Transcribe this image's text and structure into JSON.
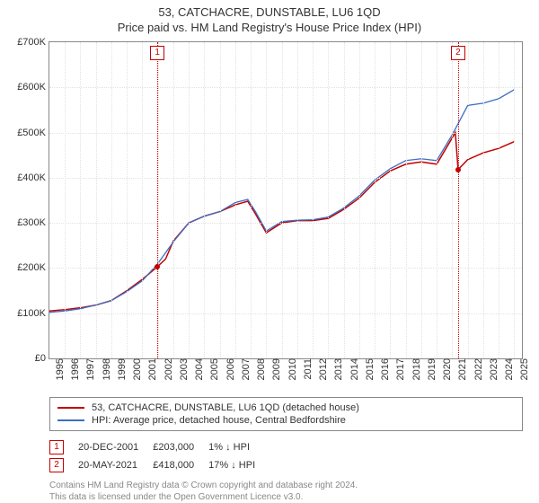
{
  "title_line1": "53, CATCHACRE, DUNSTABLE, LU6 1QD",
  "title_line2": "Price paid vs. HM Land Registry's House Price Index (HPI)",
  "chart": {
    "type": "line",
    "background_color": "#ffffff",
    "grid_color": "#e2e2e2",
    "axis_color": "#888888",
    "ylim": [
      0,
      700000
    ],
    "ytick_step": 100000,
    "ytick_prefix": "£",
    "ytick_suffix": "K",
    "xlim": [
      1995,
      2025.5
    ],
    "xticks": [
      1995,
      1996,
      1997,
      1998,
      1999,
      2000,
      2001,
      2002,
      2003,
      2004,
      2005,
      2006,
      2007,
      2008,
      2009,
      2010,
      2011,
      2012,
      2013,
      2014,
      2015,
      2016,
      2017,
      2018,
      2019,
      2020,
      2021,
      2022,
      2023,
      2024,
      2025
    ],
    "series": [
      {
        "name": "53, CATCHACRE, DUNSTABLE, LU6 1QD (detached house)",
        "color": "#c40000",
        "line_width": 1.5,
        "data": [
          [
            1995,
            105000
          ],
          [
            1996,
            108000
          ],
          [
            1997,
            112000
          ],
          [
            1998,
            118000
          ],
          [
            1999,
            128000
          ],
          [
            2000,
            150000
          ],
          [
            2001,
            175000
          ],
          [
            2001.97,
            203000
          ],
          [
            2002.5,
            220000
          ],
          [
            2003,
            260000
          ],
          [
            2004,
            300000
          ],
          [
            2005,
            315000
          ],
          [
            2006,
            325000
          ],
          [
            2007,
            340000
          ],
          [
            2007.8,
            348000
          ],
          [
            2008.3,
            320000
          ],
          [
            2009,
            278000
          ],
          [
            2010,
            300000
          ],
          [
            2011,
            305000
          ],
          [
            2012,
            305000
          ],
          [
            2013,
            310000
          ],
          [
            2014,
            330000
          ],
          [
            2015,
            355000
          ],
          [
            2016,
            390000
          ],
          [
            2017,
            415000
          ],
          [
            2018,
            430000
          ],
          [
            2019,
            435000
          ],
          [
            2020,
            430000
          ],
          [
            2021.2,
            500000
          ],
          [
            2021.38,
            418000
          ],
          [
            2022,
            440000
          ],
          [
            2023,
            455000
          ],
          [
            2024,
            465000
          ],
          [
            2025,
            480000
          ]
        ]
      },
      {
        "name": "HPI: Average price, detached house, Central Bedfordshire",
        "color": "#3b6fc4",
        "line_width": 1.3,
        "data": [
          [
            1995,
            102000
          ],
          [
            1996,
            105000
          ],
          [
            1997,
            110000
          ],
          [
            1998,
            118000
          ],
          [
            1999,
            128000
          ],
          [
            2000,
            148000
          ],
          [
            2001,
            172000
          ],
          [
            2002,
            210000
          ],
          [
            2003,
            258000
          ],
          [
            2004,
            300000
          ],
          [
            2005,
            315000
          ],
          [
            2006,
            325000
          ],
          [
            2007,
            345000
          ],
          [
            2007.8,
            352000
          ],
          [
            2008.3,
            325000
          ],
          [
            2009,
            282000
          ],
          [
            2010,
            303000
          ],
          [
            2011,
            306000
          ],
          [
            2012,
            307000
          ],
          [
            2013,
            313000
          ],
          [
            2014,
            333000
          ],
          [
            2015,
            360000
          ],
          [
            2016,
            395000
          ],
          [
            2017,
            420000
          ],
          [
            2018,
            438000
          ],
          [
            2019,
            442000
          ],
          [
            2020,
            438000
          ],
          [
            2021,
            495000
          ],
          [
            2022,
            560000
          ],
          [
            2023,
            565000
          ],
          [
            2024,
            575000
          ],
          [
            2025,
            595000
          ]
        ]
      }
    ],
    "markers": [
      {
        "key": "1",
        "x": 2001.97,
        "y": 203000,
        "color": "#c40000",
        "dot_size": 6
      },
      {
        "key": "2",
        "x": 2021.38,
        "y": 418000,
        "color": "#c40000",
        "dot_size": 6
      }
    ]
  },
  "legend": [
    {
      "color": "#c40000",
      "label": "53, CATCHACRE, DUNSTABLE, LU6 1QD (detached house)"
    },
    {
      "color": "#3b6fc4",
      "label": "HPI: Average price, detached house, Central Bedfordshire"
    }
  ],
  "sales": [
    {
      "key": "1",
      "color": "#c40000",
      "date": "20-DEC-2001",
      "price": "£203,000",
      "delta": "1% ↓ HPI"
    },
    {
      "key": "2",
      "color": "#c40000",
      "date": "20-MAY-2021",
      "price": "£418,000",
      "delta": "17% ↓ HPI"
    }
  ],
  "footer_line1": "Contains HM Land Registry data © Crown copyright and database right 2024.",
  "footer_line2": "This data is licensed under the Open Government Licence v3.0."
}
